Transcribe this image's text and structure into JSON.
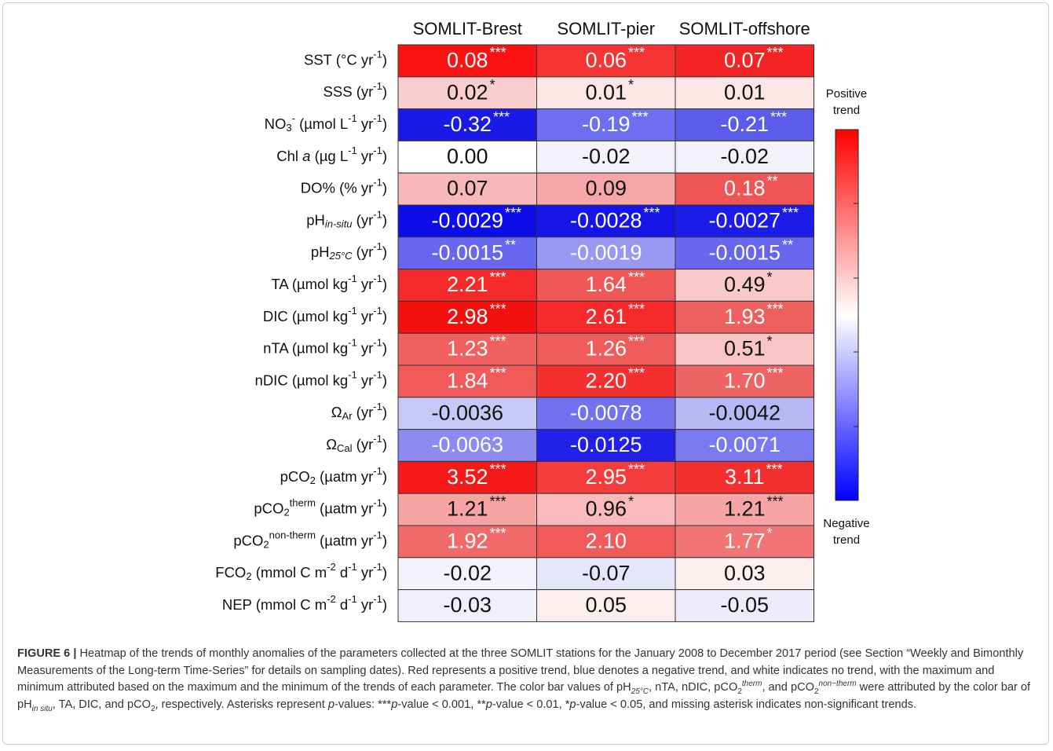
{
  "columns": [
    "SOMLIT-Brest",
    "SOMLIT-pier",
    "SOMLIT-offshore"
  ],
  "rows": [
    {
      "label": [
        {
          "text": "SST (°C yr"
        },
        {
          "text": "-1",
          "pos": "sup"
        },
        {
          "text": ")"
        }
      ],
      "cells": [
        {
          "value": "0.08",
          "stars": "***",
          "color": "#fb1212"
        },
        {
          "value": "0.06",
          "stars": "***",
          "color": "#f73434"
        },
        {
          "value": "0.07",
          "stars": "***",
          "color": "#f52424"
        }
      ]
    },
    {
      "label": [
        {
          "text": "SSS (yr"
        },
        {
          "text": "-1",
          "pos": "sup"
        },
        {
          "text": ")"
        }
      ],
      "cells": [
        {
          "value": "0.02",
          "stars": "*",
          "color": "#f9cece"
        },
        {
          "value": "0.01",
          "stars": "*",
          "color": "#fce6e6"
        },
        {
          "value": "0.01",
          "color": "#fce6e6"
        }
      ]
    },
    {
      "label": [
        {
          "text": "NO"
        },
        {
          "text": "3",
          "pos": "sub"
        },
        {
          "text": "-",
          "pos": "sup"
        },
        {
          "text": " (µmol L"
        },
        {
          "text": "-1",
          "pos": "sup"
        },
        {
          "text": " yr"
        },
        {
          "text": "-1",
          "pos": "sup"
        },
        {
          "text": ")"
        }
      ],
      "cells": [
        {
          "value": "-0.32",
          "stars": "***",
          "color": "#1a1ae8"
        },
        {
          "value": "-0.19",
          "stars": "***",
          "color": "#6e6ef0"
        },
        {
          "value": "-0.21",
          "stars": "***",
          "color": "#5b5bec"
        }
      ]
    },
    {
      "label": [
        {
          "text": "Chl "
        },
        {
          "text": "a",
          "italic": true
        },
        {
          "text": " (µg L"
        },
        {
          "text": "-1",
          "pos": "sup"
        },
        {
          "text": " yr"
        },
        {
          "text": "-1",
          "pos": "sup"
        },
        {
          "text": ")"
        }
      ],
      "cells": [
        {
          "value": "0.00",
          "color": "#ffffff"
        },
        {
          "value": "-0.02",
          "color": "#f2f2fb"
        },
        {
          "value": "-0.02",
          "color": "#f2f2fb"
        }
      ]
    },
    {
      "label": [
        {
          "text": "DO% (% yr"
        },
        {
          "text": "-1",
          "pos": "sup"
        },
        {
          "text": ")"
        }
      ],
      "cells": [
        {
          "value": "0.07",
          "color": "#f7b8b8"
        },
        {
          "value": "0.09",
          "color": "#f6a6a6"
        },
        {
          "value": "0.18",
          "stars": "**",
          "color": "#ef5555"
        }
      ]
    },
    {
      "label": [
        {
          "text": "pH"
        },
        {
          "text": "in-situ",
          "pos": "sub",
          "italic": true
        },
        {
          "text": " (yr"
        },
        {
          "text": "-1",
          "pos": "sup"
        },
        {
          "text": ")"
        }
      ],
      "cells": [
        {
          "value": "-0.0029",
          "stars": "***",
          "color": "#0d0de8"
        },
        {
          "value": "-0.0028",
          "stars": "***",
          "color": "#1515e8"
        },
        {
          "value": "-0.0027",
          "stars": "***",
          "color": "#1c1cea"
        }
      ]
    },
    {
      "label": [
        {
          "text": "pH"
        },
        {
          "text": "25°C",
          "pos": "sub",
          "italic": true
        },
        {
          "text": " (yr"
        },
        {
          "text": "-1",
          "pos": "sup"
        },
        {
          "text": ")"
        }
      ],
      "cells": [
        {
          "value": "-0.0015",
          "stars": "**",
          "color": "#6666ee"
        },
        {
          "value": "-0.0019",
          "color": "#9999f2"
        },
        {
          "value": "-0.0015",
          "stars": "**",
          "color": "#6666ee"
        }
      ]
    },
    {
      "label": [
        {
          "text": "TA (µmol kg"
        },
        {
          "text": "-1",
          "pos": "sup"
        },
        {
          "text": " yr"
        },
        {
          "text": "-1",
          "pos": "sup"
        },
        {
          "text": ")"
        }
      ],
      "cells": [
        {
          "value": "2.21",
          "stars": "***",
          "color": "#f62a2a"
        },
        {
          "value": "1.64",
          "stars": "***",
          "color": "#f05858"
        },
        {
          "value": "0.49",
          "stars": "*",
          "color": "#f9c8c8"
        }
      ]
    },
    {
      "label": [
        {
          "text": "DIC (µmol kg"
        },
        {
          "text": "-1",
          "pos": "sup"
        },
        {
          "text": " yr"
        },
        {
          "text": "-1",
          "pos": "sup"
        },
        {
          "text": ")"
        }
      ],
      "cells": [
        {
          "value": "2.98",
          "stars": "***",
          "color": "#f51010"
        },
        {
          "value": "2.61",
          "stars": "***",
          "color": "#f62a2a"
        },
        {
          "value": "1.93",
          "stars": "***",
          "color": "#ee6060"
        }
      ]
    },
    {
      "label": [
        {
          "text": "nTA (µmol kg"
        },
        {
          "text": "-1",
          "pos": "sup"
        },
        {
          "text": " yr"
        },
        {
          "text": "-1",
          "pos": "sup"
        },
        {
          "text": ")"
        }
      ],
      "cells": [
        {
          "value": "1.23",
          "stars": "***",
          "color": "#f06060"
        },
        {
          "value": "1.26",
          "stars": "***",
          "color": "#ef5c5c"
        },
        {
          "value": "0.51",
          "stars": "*",
          "color": "#f9c4c4"
        }
      ]
    },
    {
      "label": [
        {
          "text": "nDIC (µmol kg"
        },
        {
          "text": "-1",
          "pos": "sup"
        },
        {
          "text": " yr"
        },
        {
          "text": "-1",
          "pos": "sup"
        },
        {
          "text": ")"
        }
      ],
      "cells": [
        {
          "value": "1.84",
          "stars": "***",
          "color": "#f15a5a"
        },
        {
          "value": "2.20",
          "stars": "***",
          "color": "#f52f2f"
        },
        {
          "value": "1.70",
          "stars": "***",
          "color": "#ee6464"
        }
      ]
    },
    {
      "label": [
        {
          "text": "Ω"
        },
        {
          "text": "Ar",
          "pos": "sub"
        },
        {
          "text": " (yr"
        },
        {
          "text": "-1",
          "pos": "sup"
        },
        {
          "text": ")"
        }
      ],
      "cells": [
        {
          "value": "-0.0036",
          "color": "#c8c8f6"
        },
        {
          "value": "-0.0078",
          "color": "#7272ee"
        },
        {
          "value": "-0.0042",
          "color": "#b8b8f4"
        }
      ]
    },
    {
      "label": [
        {
          "text": "Ω"
        },
        {
          "text": "Cal",
          "pos": "sub"
        },
        {
          "text": " (yr"
        },
        {
          "text": "-1",
          "pos": "sup"
        },
        {
          "text": ")"
        }
      ],
      "cells": [
        {
          "value": "-0.0063",
          "color": "#8c8cf0"
        },
        {
          "value": "-0.0125",
          "color": "#2020e8"
        },
        {
          "value": "-0.0071",
          "color": "#7a7af0"
        }
      ]
    },
    {
      "label": [
        {
          "text": "pCO"
        },
        {
          "text": "2",
          "pos": "sub"
        },
        {
          "text": " (µatm yr"
        },
        {
          "text": "-1",
          "pos": "sup"
        },
        {
          "text": ")"
        }
      ],
      "cells": [
        {
          "value": "3.52",
          "stars": "***",
          "color": "#f41a1a"
        },
        {
          "value": "2.95",
          "stars": "***",
          "color": "#f43c3c"
        },
        {
          "value": "3.11",
          "stars": "***",
          "color": "#f42f2f"
        }
      ]
    },
    {
      "label": [
        {
          "text": "pCO"
        },
        {
          "text": "2",
          "pos": "sub"
        },
        {
          "text": "therm",
          "pos": "sup"
        },
        {
          "text": " (µatm yr"
        },
        {
          "text": "-1",
          "pos": "sup"
        },
        {
          "text": ")"
        }
      ],
      "cells": [
        {
          "value": "1.21",
          "stars": "***",
          "color": "#f6a4a4"
        },
        {
          "value": "0.96",
          "stars": "*",
          "color": "#f8baba"
        },
        {
          "value": "1.21",
          "stars": "***",
          "color": "#f6a4a4"
        }
      ]
    },
    {
      "label": [
        {
          "text": "pCO"
        },
        {
          "text": "2",
          "pos": "sub"
        },
        {
          "text": "non-therm",
          "pos": "sup"
        },
        {
          "text": " (µatm yr"
        },
        {
          "text": "-1",
          "pos": "sup"
        },
        {
          "text": ")"
        }
      ],
      "cells": [
        {
          "value": "1.92",
          "stars": "***",
          "color": "#f16a6a"
        },
        {
          "value": "2.10",
          "color": "#f15a5a"
        },
        {
          "value": "1.77",
          "stars": "*",
          "color": "#f27575"
        }
      ]
    },
    {
      "label": [
        {
          "text": "FCO"
        },
        {
          "text": "2",
          "pos": "sub"
        },
        {
          "text": " (mmol C m"
        },
        {
          "text": "-2",
          "pos": "sup"
        },
        {
          "text": " d"
        },
        {
          "text": "-1",
          "pos": "sup"
        },
        {
          "text": " yr"
        },
        {
          "text": "-1",
          "pos": "sup"
        },
        {
          "text": ")"
        }
      ],
      "cells": [
        {
          "value": "-0.02",
          "color": "#f3f3fc"
        },
        {
          "value": "-0.07",
          "color": "#e6e6fa"
        },
        {
          "value": "0.03",
          "color": "#fdf0f0"
        }
      ]
    },
    {
      "label": [
        {
          "text": "NEP (mmol C m"
        },
        {
          "text": "-2",
          "pos": "sup"
        },
        {
          "text": " d"
        },
        {
          "text": "-1",
          "pos": "sup"
        },
        {
          "text": " yr"
        },
        {
          "text": "-1",
          "pos": "sup"
        },
        {
          "text": ")"
        }
      ],
      "cells": [
        {
          "value": "-0.03",
          "color": "#f0f0fb"
        },
        {
          "value": "0.05",
          "color": "#fdeeee"
        },
        {
          "value": "-0.05",
          "color": "#ececfa"
        }
      ]
    }
  ],
  "colorbar": {
    "top_label": "Positive trend",
    "bottom_label": "Negative trend"
  },
  "caption": [
    {
      "text": "FIGURE 6 |",
      "bold": true
    },
    {
      "text": " Heatmap of the trends of monthly anomalies of the parameters collected at the three SOMLIT stations for the January 2008 to December 2017 period (see Section “Weekly and Bimonthly Measurements of the Long-term Time-Series” for details on sampling dates). Red represents a positive trend, blue denotes a negative trend, and white indicates no trend, with the maximum and minimum attributed based on the maximum and the minimum of the trends of each parameter. The color bar values of pH"
    },
    {
      "text": "25°C",
      "pos": "sub",
      "italic": true
    },
    {
      "text": ", nTA, nDIC, pCO"
    },
    {
      "text": "2",
      "pos": "sub"
    },
    {
      "text": "therm",
      "pos": "sup",
      "italic": true
    },
    {
      "text": ", and pCO"
    },
    {
      "text": "2",
      "pos": "sub"
    },
    {
      "text": "non−therm",
      "pos": "sup",
      "italic": true
    },
    {
      "text": " were attributed by the color bar of pH"
    },
    {
      "text": "in situ",
      "pos": "sub",
      "italic": true
    },
    {
      "text": ", TA, DIC, and pCO"
    },
    {
      "text": "2",
      "pos": "sub"
    },
    {
      "text": ", respectively. Asterisks represent "
    },
    {
      "text": "p",
      "italic": true
    },
    {
      "text": "-values: ***"
    },
    {
      "text": "p",
      "italic": true
    },
    {
      "text": "-value < 0.001, **"
    },
    {
      "text": "p",
      "italic": true
    },
    {
      "text": "-value < 0.01, *"
    },
    {
      "text": "p",
      "italic": true
    },
    {
      "text": "-value < 0.05, and missing asterisk indicates non-significant trends."
    }
  ]
}
